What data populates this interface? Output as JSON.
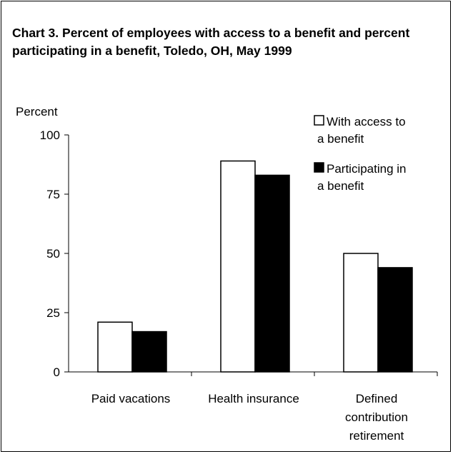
{
  "chart_data": {
    "type": "bar",
    "title": "Chart 3. Percent of employees with access to a benefit and percent participating in a benefit, Toledo, OH, May 1999",
    "ylabel": "Percent",
    "xlabel": "",
    "ylim": [
      0,
      100
    ],
    "yticks": [
      0,
      25,
      50,
      75,
      100
    ],
    "categories": [
      [
        "Paid vacations"
      ],
      [
        "Health insurance"
      ],
      [
        "Defined",
        "contribution",
        "retirement"
      ]
    ],
    "series": [
      {
        "name": [
          "With access to",
          "a benefit"
        ],
        "values": [
          21,
          89,
          50
        ],
        "color": "#ffffff"
      },
      {
        "name": [
          "Participating in",
          "a benefit"
        ],
        "values": [
          17,
          83,
          44
        ],
        "color": "#000000"
      }
    ],
    "legend_position": "top-right",
    "grid": false
  }
}
